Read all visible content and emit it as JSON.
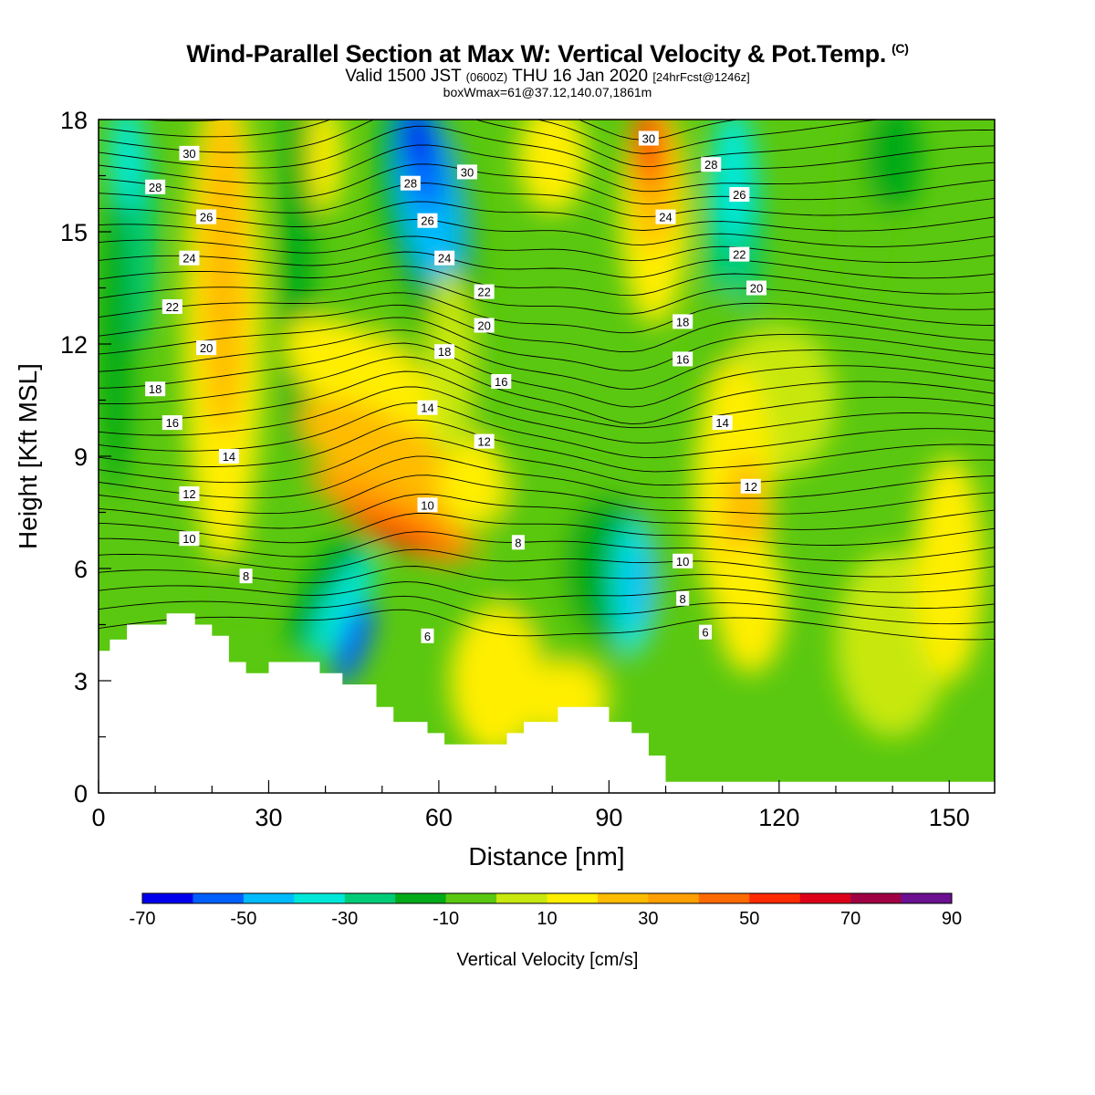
{
  "chart_data": {
    "type": "heatmap",
    "title": "Wind-Parallel Section at Max W: Vertical Velocity & Pot.Temp.",
    "title_mark": "(C)",
    "subtitle_main": "Valid 1500 JST",
    "subtitle_utc": "(0600Z)",
    "subtitle_date": "THU 16 Jan 2020",
    "subtitle_fcst": "[24hrFcst@1246z]",
    "subtitle2": "boxWmax=61@37.12,140.07,1861m",
    "xlabel": "Distance [nm]",
    "ylabel": "Height [Kft MSL]",
    "xlim": [
      0,
      158
    ],
    "ylim": [
      0,
      18
    ],
    "x_ticks": [
      "0",
      "30",
      "60",
      "90",
      "120",
      "150"
    ],
    "y_ticks": [
      "0",
      "3",
      "6",
      "9",
      "12",
      "15",
      "18"
    ],
    "colorbar": {
      "label": "Vertical Velocity [cm/s]",
      "ticks": [
        "-70",
        "-50",
        "-30",
        "-10",
        "10",
        "30",
        "50",
        "70",
        "90"
      ],
      "colors": [
        "#0000ee",
        "#0060ff",
        "#00bbff",
        "#00e8d8",
        "#00cc78",
        "#00aa18",
        "#5ac810",
        "#c8e810",
        "#ffee00",
        "#ffbb00",
        "#ffa000",
        "#ff6a00",
        "#ff2a00",
        "#dd0018",
        "#a00044",
        "#6a1090"
      ]
    },
    "isentrope_labels": [
      {
        "value": "30",
        "x": 16,
        "y": 17.1
      },
      {
        "value": "28",
        "x": 10,
        "y": 16.2
      },
      {
        "value": "26",
        "x": 19,
        "y": 15.4
      },
      {
        "value": "24",
        "x": 16,
        "y": 14.3
      },
      {
        "value": "22",
        "x": 13,
        "y": 13.0
      },
      {
        "value": "20",
        "x": 19,
        "y": 11.9
      },
      {
        "value": "18",
        "x": 10,
        "y": 10.8
      },
      {
        "value": "16",
        "x": 13,
        "y": 9.9
      },
      {
        "value": "14",
        "x": 23,
        "y": 9.0
      },
      {
        "value": "12",
        "x": 16,
        "y": 8.0
      },
      {
        "value": "10",
        "x": 16,
        "y": 6.8
      },
      {
        "value": "8",
        "x": 26,
        "y": 5.8
      },
      {
        "value": "28",
        "x": 55,
        "y": 16.3
      },
      {
        "value": "26",
        "x": 58,
        "y": 15.3
      },
      {
        "value": "24",
        "x": 61,
        "y": 14.3
      },
      {
        "value": "22",
        "x": 68,
        "y": 13.4
      },
      {
        "value": "20",
        "x": 68,
        "y": 12.5
      },
      {
        "value": "18",
        "x": 61,
        "y": 11.8
      },
      {
        "value": "16",
        "x": 71,
        "y": 11.0
      },
      {
        "value": "14",
        "x": 58,
        "y": 10.3
      },
      {
        "value": "12",
        "x": 68,
        "y": 9.4
      },
      {
        "value": "10",
        "x": 58,
        "y": 7.7
      },
      {
        "value": "8",
        "x": 74,
        "y": 6.7
      },
      {
        "value": "6",
        "x": 58,
        "y": 4.2
      },
      {
        "value": "30",
        "x": 65,
        "y": 16.6
      },
      {
        "value": "30",
        "x": 97,
        "y": 17.5
      },
      {
        "value": "28",
        "x": 108,
        "y": 16.8
      },
      {
        "value": "26",
        "x": 113,
        "y": 16.0
      },
      {
        "value": "24",
        "x": 100,
        "y": 15.4
      },
      {
        "value": "22",
        "x": 113,
        "y": 14.4
      },
      {
        "value": "20",
        "x": 116,
        "y": 13.5
      },
      {
        "value": "18",
        "x": 103,
        "y": 12.6
      },
      {
        "value": "16",
        "x": 103,
        "y": 11.6
      },
      {
        "value": "14",
        "x": 110,
        "y": 9.9
      },
      {
        "value": "12",
        "x": 115,
        "y": 8.2
      },
      {
        "value": "10",
        "x": 103,
        "y": 6.2
      },
      {
        "value": "8",
        "x": 103,
        "y": 5.2
      },
      {
        "value": "6",
        "x": 107,
        "y": 4.3
      }
    ]
  }
}
